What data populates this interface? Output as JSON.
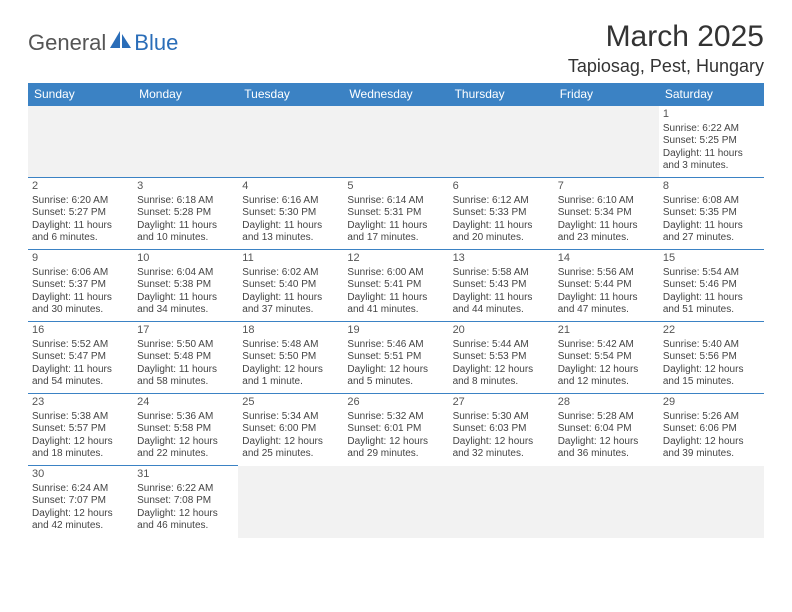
{
  "logo": {
    "text1": "General",
    "text2": "Blue",
    "sail_color": "#2a6db8"
  },
  "header": {
    "month_title": "March 2025",
    "location": "Tapiosag, Pest, Hungary"
  },
  "colors": {
    "header_bg": "#3b82c4",
    "header_fg": "#ffffff",
    "border": "#3b82c4",
    "blank_bg": "#f2f2f2"
  },
  "days_of_week": [
    "Sunday",
    "Monday",
    "Tuesday",
    "Wednesday",
    "Thursday",
    "Friday",
    "Saturday"
  ],
  "weeks": [
    [
      {
        "blank": true
      },
      {
        "blank": true
      },
      {
        "blank": true
      },
      {
        "blank": true
      },
      {
        "blank": true
      },
      {
        "blank": true
      },
      {
        "day": "1",
        "sunrise": "Sunrise: 6:22 AM",
        "sunset": "Sunset: 5:25 PM",
        "daylight1": "Daylight: 11 hours",
        "daylight2": "and 3 minutes."
      }
    ],
    [
      {
        "day": "2",
        "sunrise": "Sunrise: 6:20 AM",
        "sunset": "Sunset: 5:27 PM",
        "daylight1": "Daylight: 11 hours",
        "daylight2": "and 6 minutes."
      },
      {
        "day": "3",
        "sunrise": "Sunrise: 6:18 AM",
        "sunset": "Sunset: 5:28 PM",
        "daylight1": "Daylight: 11 hours",
        "daylight2": "and 10 minutes."
      },
      {
        "day": "4",
        "sunrise": "Sunrise: 6:16 AM",
        "sunset": "Sunset: 5:30 PM",
        "daylight1": "Daylight: 11 hours",
        "daylight2": "and 13 minutes."
      },
      {
        "day": "5",
        "sunrise": "Sunrise: 6:14 AM",
        "sunset": "Sunset: 5:31 PM",
        "daylight1": "Daylight: 11 hours",
        "daylight2": "and 17 minutes."
      },
      {
        "day": "6",
        "sunrise": "Sunrise: 6:12 AM",
        "sunset": "Sunset: 5:33 PM",
        "daylight1": "Daylight: 11 hours",
        "daylight2": "and 20 minutes."
      },
      {
        "day": "7",
        "sunrise": "Sunrise: 6:10 AM",
        "sunset": "Sunset: 5:34 PM",
        "daylight1": "Daylight: 11 hours",
        "daylight2": "and 23 minutes."
      },
      {
        "day": "8",
        "sunrise": "Sunrise: 6:08 AM",
        "sunset": "Sunset: 5:35 PM",
        "daylight1": "Daylight: 11 hours",
        "daylight2": "and 27 minutes."
      }
    ],
    [
      {
        "day": "9",
        "sunrise": "Sunrise: 6:06 AM",
        "sunset": "Sunset: 5:37 PM",
        "daylight1": "Daylight: 11 hours",
        "daylight2": "and 30 minutes."
      },
      {
        "day": "10",
        "sunrise": "Sunrise: 6:04 AM",
        "sunset": "Sunset: 5:38 PM",
        "daylight1": "Daylight: 11 hours",
        "daylight2": "and 34 minutes."
      },
      {
        "day": "11",
        "sunrise": "Sunrise: 6:02 AM",
        "sunset": "Sunset: 5:40 PM",
        "daylight1": "Daylight: 11 hours",
        "daylight2": "and 37 minutes."
      },
      {
        "day": "12",
        "sunrise": "Sunrise: 6:00 AM",
        "sunset": "Sunset: 5:41 PM",
        "daylight1": "Daylight: 11 hours",
        "daylight2": "and 41 minutes."
      },
      {
        "day": "13",
        "sunrise": "Sunrise: 5:58 AM",
        "sunset": "Sunset: 5:43 PM",
        "daylight1": "Daylight: 11 hours",
        "daylight2": "and 44 minutes."
      },
      {
        "day": "14",
        "sunrise": "Sunrise: 5:56 AM",
        "sunset": "Sunset: 5:44 PM",
        "daylight1": "Daylight: 11 hours",
        "daylight2": "and 47 minutes."
      },
      {
        "day": "15",
        "sunrise": "Sunrise: 5:54 AM",
        "sunset": "Sunset: 5:46 PM",
        "daylight1": "Daylight: 11 hours",
        "daylight2": "and 51 minutes."
      }
    ],
    [
      {
        "day": "16",
        "sunrise": "Sunrise: 5:52 AM",
        "sunset": "Sunset: 5:47 PM",
        "daylight1": "Daylight: 11 hours",
        "daylight2": "and 54 minutes."
      },
      {
        "day": "17",
        "sunrise": "Sunrise: 5:50 AM",
        "sunset": "Sunset: 5:48 PM",
        "daylight1": "Daylight: 11 hours",
        "daylight2": "and 58 minutes."
      },
      {
        "day": "18",
        "sunrise": "Sunrise: 5:48 AM",
        "sunset": "Sunset: 5:50 PM",
        "daylight1": "Daylight: 12 hours",
        "daylight2": "and 1 minute."
      },
      {
        "day": "19",
        "sunrise": "Sunrise: 5:46 AM",
        "sunset": "Sunset: 5:51 PM",
        "daylight1": "Daylight: 12 hours",
        "daylight2": "and 5 minutes."
      },
      {
        "day": "20",
        "sunrise": "Sunrise: 5:44 AM",
        "sunset": "Sunset: 5:53 PM",
        "daylight1": "Daylight: 12 hours",
        "daylight2": "and 8 minutes."
      },
      {
        "day": "21",
        "sunrise": "Sunrise: 5:42 AM",
        "sunset": "Sunset: 5:54 PM",
        "daylight1": "Daylight: 12 hours",
        "daylight2": "and 12 minutes."
      },
      {
        "day": "22",
        "sunrise": "Sunrise: 5:40 AM",
        "sunset": "Sunset: 5:56 PM",
        "daylight1": "Daylight: 12 hours",
        "daylight2": "and 15 minutes."
      }
    ],
    [
      {
        "day": "23",
        "sunrise": "Sunrise: 5:38 AM",
        "sunset": "Sunset: 5:57 PM",
        "daylight1": "Daylight: 12 hours",
        "daylight2": "and 18 minutes."
      },
      {
        "day": "24",
        "sunrise": "Sunrise: 5:36 AM",
        "sunset": "Sunset: 5:58 PM",
        "daylight1": "Daylight: 12 hours",
        "daylight2": "and 22 minutes."
      },
      {
        "day": "25",
        "sunrise": "Sunrise: 5:34 AM",
        "sunset": "Sunset: 6:00 PM",
        "daylight1": "Daylight: 12 hours",
        "daylight2": "and 25 minutes."
      },
      {
        "day": "26",
        "sunrise": "Sunrise: 5:32 AM",
        "sunset": "Sunset: 6:01 PM",
        "daylight1": "Daylight: 12 hours",
        "daylight2": "and 29 minutes."
      },
      {
        "day": "27",
        "sunrise": "Sunrise: 5:30 AM",
        "sunset": "Sunset: 6:03 PM",
        "daylight1": "Daylight: 12 hours",
        "daylight2": "and 32 minutes."
      },
      {
        "day": "28",
        "sunrise": "Sunrise: 5:28 AM",
        "sunset": "Sunset: 6:04 PM",
        "daylight1": "Daylight: 12 hours",
        "daylight2": "and 36 minutes."
      },
      {
        "day": "29",
        "sunrise": "Sunrise: 5:26 AM",
        "sunset": "Sunset: 6:06 PM",
        "daylight1": "Daylight: 12 hours",
        "daylight2": "and 39 minutes."
      }
    ],
    [
      {
        "day": "30",
        "sunrise": "Sunrise: 6:24 AM",
        "sunset": "Sunset: 7:07 PM",
        "daylight1": "Daylight: 12 hours",
        "daylight2": "and 42 minutes."
      },
      {
        "day": "31",
        "sunrise": "Sunrise: 6:22 AM",
        "sunset": "Sunset: 7:08 PM",
        "daylight1": "Daylight: 12 hours",
        "daylight2": "and 46 minutes."
      },
      {
        "blank": true
      },
      {
        "blank": true
      },
      {
        "blank": true
      },
      {
        "blank": true
      },
      {
        "blank": true
      }
    ]
  ]
}
